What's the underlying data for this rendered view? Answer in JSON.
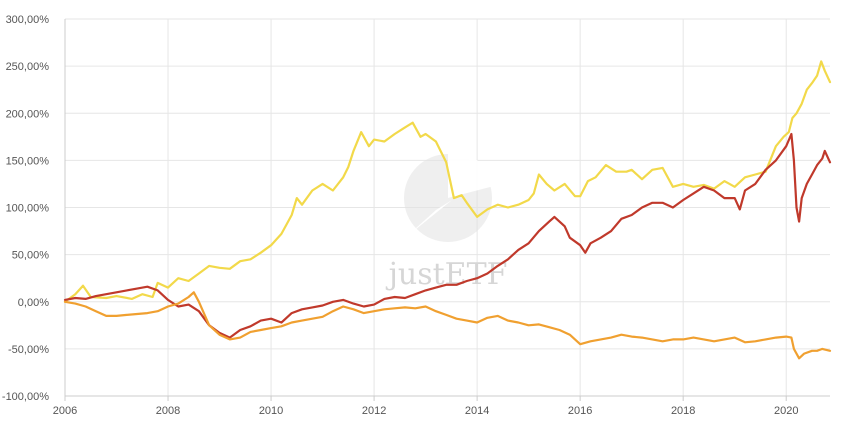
{
  "chart_data": {
    "type": "line",
    "title": "",
    "xlabel": "",
    "ylabel": "",
    "xlim": [
      2006.0,
      2020.85
    ],
    "ylim": [
      -100,
      300
    ],
    "y_ticks": [
      -100,
      -50,
      0,
      50,
      100,
      150,
      200,
      250,
      300
    ],
    "y_tick_labels": [
      "-100,00%",
      "-50,00%",
      "0,00%",
      "50,00%",
      "100,00%",
      "150,00%",
      "200,00%",
      "250,00%",
      "300,00%"
    ],
    "x_ticks": [
      2006,
      2008,
      2010,
      2012,
      2014,
      2016,
      2018,
      2020
    ],
    "x_tick_labels": [
      "2006",
      "2008",
      "2010",
      "2012",
      "2014",
      "2016",
      "2018",
      "2020"
    ],
    "grid": true,
    "legend": "none",
    "watermark": "justETF",
    "series": [
      {
        "color": "#f2d94a",
        "points": [
          [
            2006.0,
            0
          ],
          [
            2006.2,
            8
          ],
          [
            2006.35,
            17
          ],
          [
            2006.5,
            5
          ],
          [
            2006.8,
            4
          ],
          [
            2007.0,
            6
          ],
          [
            2007.3,
            3
          ],
          [
            2007.5,
            8
          ],
          [
            2007.7,
            5
          ],
          [
            2007.8,
            20
          ],
          [
            2008.0,
            15
          ],
          [
            2008.2,
            25
          ],
          [
            2008.4,
            22
          ],
          [
            2008.6,
            30
          ],
          [
            2008.8,
            38
          ],
          [
            2009.0,
            36
          ],
          [
            2009.2,
            35
          ],
          [
            2009.4,
            43
          ],
          [
            2009.6,
            45
          ],
          [
            2009.8,
            52
          ],
          [
            2010.0,
            60
          ],
          [
            2010.2,
            72
          ],
          [
            2010.4,
            92
          ],
          [
            2010.5,
            110
          ],
          [
            2010.6,
            103
          ],
          [
            2010.8,
            118
          ],
          [
            2011.0,
            125
          ],
          [
            2011.2,
            118
          ],
          [
            2011.4,
            132
          ],
          [
            2011.5,
            143
          ],
          [
            2011.6,
            160
          ],
          [
            2011.75,
            180
          ],
          [
            2011.9,
            165
          ],
          [
            2012.0,
            172
          ],
          [
            2012.2,
            170
          ],
          [
            2012.4,
            178
          ],
          [
            2012.6,
            185
          ],
          [
            2012.75,
            190
          ],
          [
            2012.9,
            175
          ],
          [
            2013.0,
            178
          ],
          [
            2013.2,
            170
          ],
          [
            2013.4,
            148
          ],
          [
            2013.55,
            110
          ],
          [
            2013.7,
            113
          ],
          [
            2013.8,
            105
          ],
          [
            2014.0,
            90
          ],
          [
            2014.2,
            98
          ],
          [
            2014.4,
            103
          ],
          [
            2014.6,
            100
          ],
          [
            2014.8,
            103
          ],
          [
            2015.0,
            108
          ],
          [
            2015.1,
            115
          ],
          [
            2015.2,
            135
          ],
          [
            2015.35,
            125
          ],
          [
            2015.5,
            118
          ],
          [
            2015.7,
            125
          ],
          [
            2015.9,
            112
          ],
          [
            2016.0,
            112
          ],
          [
            2016.15,
            128
          ],
          [
            2016.3,
            132
          ],
          [
            2016.5,
            145
          ],
          [
            2016.7,
            138
          ],
          [
            2016.9,
            138
          ],
          [
            2017.0,
            140
          ],
          [
            2017.2,
            130
          ],
          [
            2017.4,
            140
          ],
          [
            2017.6,
            142
          ],
          [
            2017.8,
            122
          ],
          [
            2018.0,
            125
          ],
          [
            2018.2,
            122
          ],
          [
            2018.4,
            124
          ],
          [
            2018.6,
            120
          ],
          [
            2018.8,
            128
          ],
          [
            2019.0,
            122
          ],
          [
            2019.2,
            132
          ],
          [
            2019.4,
            135
          ],
          [
            2019.6,
            138
          ],
          [
            2019.8,
            165
          ],
          [
            2019.95,
            175
          ],
          [
            2020.05,
            180
          ],
          [
            2020.12,
            195
          ],
          [
            2020.2,
            200
          ],
          [
            2020.3,
            210
          ],
          [
            2020.4,
            225
          ],
          [
            2020.5,
            232
          ],
          [
            2020.6,
            240
          ],
          [
            2020.68,
            255
          ],
          [
            2020.75,
            245
          ],
          [
            2020.85,
            233
          ]
        ]
      },
      {
        "color": "#c0392b",
        "points": [
          [
            2006.0,
            2
          ],
          [
            2006.2,
            4
          ],
          [
            2006.4,
            3
          ],
          [
            2006.6,
            6
          ],
          [
            2006.8,
            8
          ],
          [
            2007.0,
            10
          ],
          [
            2007.2,
            12
          ],
          [
            2007.4,
            14
          ],
          [
            2007.6,
            16
          ],
          [
            2007.8,
            12
          ],
          [
            2008.0,
            2
          ],
          [
            2008.2,
            -5
          ],
          [
            2008.4,
            -3
          ],
          [
            2008.6,
            -10
          ],
          [
            2008.8,
            -25
          ],
          [
            2009.0,
            -33
          ],
          [
            2009.2,
            -38
          ],
          [
            2009.4,
            -30
          ],
          [
            2009.6,
            -26
          ],
          [
            2009.8,
            -20
          ],
          [
            2010.0,
            -18
          ],
          [
            2010.2,
            -22
          ],
          [
            2010.4,
            -12
          ],
          [
            2010.6,
            -8
          ],
          [
            2010.8,
            -6
          ],
          [
            2011.0,
            -4
          ],
          [
            2011.2,
            0
          ],
          [
            2011.4,
            2
          ],
          [
            2011.6,
            -2
          ],
          [
            2011.8,
            -5
          ],
          [
            2012.0,
            -3
          ],
          [
            2012.2,
            3
          ],
          [
            2012.4,
            5
          ],
          [
            2012.6,
            4
          ],
          [
            2012.8,
            8
          ],
          [
            2013.0,
            12
          ],
          [
            2013.2,
            15
          ],
          [
            2013.4,
            18
          ],
          [
            2013.6,
            18
          ],
          [
            2013.8,
            22
          ],
          [
            2014.0,
            25
          ],
          [
            2014.2,
            30
          ],
          [
            2014.4,
            38
          ],
          [
            2014.6,
            45
          ],
          [
            2014.8,
            55
          ],
          [
            2015.0,
            62
          ],
          [
            2015.2,
            75
          ],
          [
            2015.4,
            85
          ],
          [
            2015.5,
            90
          ],
          [
            2015.7,
            80
          ],
          [
            2015.8,
            68
          ],
          [
            2016.0,
            60
          ],
          [
            2016.1,
            52
          ],
          [
            2016.2,
            62
          ],
          [
            2016.4,
            68
          ],
          [
            2016.6,
            75
          ],
          [
            2016.8,
            88
          ],
          [
            2017.0,
            92
          ],
          [
            2017.2,
            100
          ],
          [
            2017.4,
            105
          ],
          [
            2017.6,
            105
          ],
          [
            2017.8,
            100
          ],
          [
            2018.0,
            108
          ],
          [
            2018.2,
            115
          ],
          [
            2018.4,
            122
          ],
          [
            2018.6,
            118
          ],
          [
            2018.8,
            110
          ],
          [
            2019.0,
            110
          ],
          [
            2019.1,
            98
          ],
          [
            2019.2,
            118
          ],
          [
            2019.4,
            125
          ],
          [
            2019.6,
            140
          ],
          [
            2019.8,
            150
          ],
          [
            2020.0,
            165
          ],
          [
            2020.1,
            178
          ],
          [
            2020.15,
            150
          ],
          [
            2020.2,
            100
          ],
          [
            2020.25,
            85
          ],
          [
            2020.3,
            110
          ],
          [
            2020.4,
            125
          ],
          [
            2020.5,
            135
          ],
          [
            2020.6,
            145
          ],
          [
            2020.7,
            152
          ],
          [
            2020.75,
            160
          ],
          [
            2020.85,
            148
          ]
        ]
      },
      {
        "color": "#f0a030",
        "points": [
          [
            2006.0,
            0
          ],
          [
            2006.2,
            -2
          ],
          [
            2006.4,
            -5
          ],
          [
            2006.6,
            -10
          ],
          [
            2006.8,
            -15
          ],
          [
            2007.0,
            -15
          ],
          [
            2007.2,
            -14
          ],
          [
            2007.4,
            -13
          ],
          [
            2007.6,
            -12
          ],
          [
            2007.8,
            -10
          ],
          [
            2008.0,
            -5
          ],
          [
            2008.2,
            -2
          ],
          [
            2008.4,
            5
          ],
          [
            2008.5,
            10
          ],
          [
            2008.6,
            0
          ],
          [
            2008.8,
            -25
          ],
          [
            2009.0,
            -35
          ],
          [
            2009.2,
            -40
          ],
          [
            2009.4,
            -38
          ],
          [
            2009.6,
            -32
          ],
          [
            2009.8,
            -30
          ],
          [
            2010.0,
            -28
          ],
          [
            2010.2,
            -26
          ],
          [
            2010.4,
            -22
          ],
          [
            2010.6,
            -20
          ],
          [
            2010.8,
            -18
          ],
          [
            2011.0,
            -16
          ],
          [
            2011.2,
            -10
          ],
          [
            2011.4,
            -5
          ],
          [
            2011.6,
            -8
          ],
          [
            2011.8,
            -12
          ],
          [
            2012.0,
            -10
          ],
          [
            2012.2,
            -8
          ],
          [
            2012.4,
            -7
          ],
          [
            2012.6,
            -6
          ],
          [
            2012.8,
            -7
          ],
          [
            2013.0,
            -5
          ],
          [
            2013.2,
            -10
          ],
          [
            2013.4,
            -14
          ],
          [
            2013.6,
            -18
          ],
          [
            2013.8,
            -20
          ],
          [
            2014.0,
            -22
          ],
          [
            2014.2,
            -17
          ],
          [
            2014.4,
            -15
          ],
          [
            2014.6,
            -20
          ],
          [
            2014.8,
            -22
          ],
          [
            2015.0,
            -25
          ],
          [
            2015.2,
            -24
          ],
          [
            2015.4,
            -27
          ],
          [
            2015.6,
            -30
          ],
          [
            2015.8,
            -35
          ],
          [
            2016.0,
            -45
          ],
          [
            2016.2,
            -42
          ],
          [
            2016.4,
            -40
          ],
          [
            2016.6,
            -38
          ],
          [
            2016.8,
            -35
          ],
          [
            2017.0,
            -37
          ],
          [
            2017.2,
            -38
          ],
          [
            2017.4,
            -40
          ],
          [
            2017.6,
            -42
          ],
          [
            2017.8,
            -40
          ],
          [
            2018.0,
            -40
          ],
          [
            2018.2,
            -38
          ],
          [
            2018.4,
            -40
          ],
          [
            2018.6,
            -42
          ],
          [
            2018.8,
            -40
          ],
          [
            2019.0,
            -38
          ],
          [
            2019.2,
            -43
          ],
          [
            2019.4,
            -42
          ],
          [
            2019.6,
            -40
          ],
          [
            2019.8,
            -38
          ],
          [
            2020.0,
            -37
          ],
          [
            2020.1,
            -38
          ],
          [
            2020.15,
            -50
          ],
          [
            2020.25,
            -60
          ],
          [
            2020.35,
            -55
          ],
          [
            2020.5,
            -52
          ],
          [
            2020.6,
            -52
          ],
          [
            2020.7,
            -50
          ],
          [
            2020.85,
            -52
          ]
        ]
      }
    ]
  }
}
